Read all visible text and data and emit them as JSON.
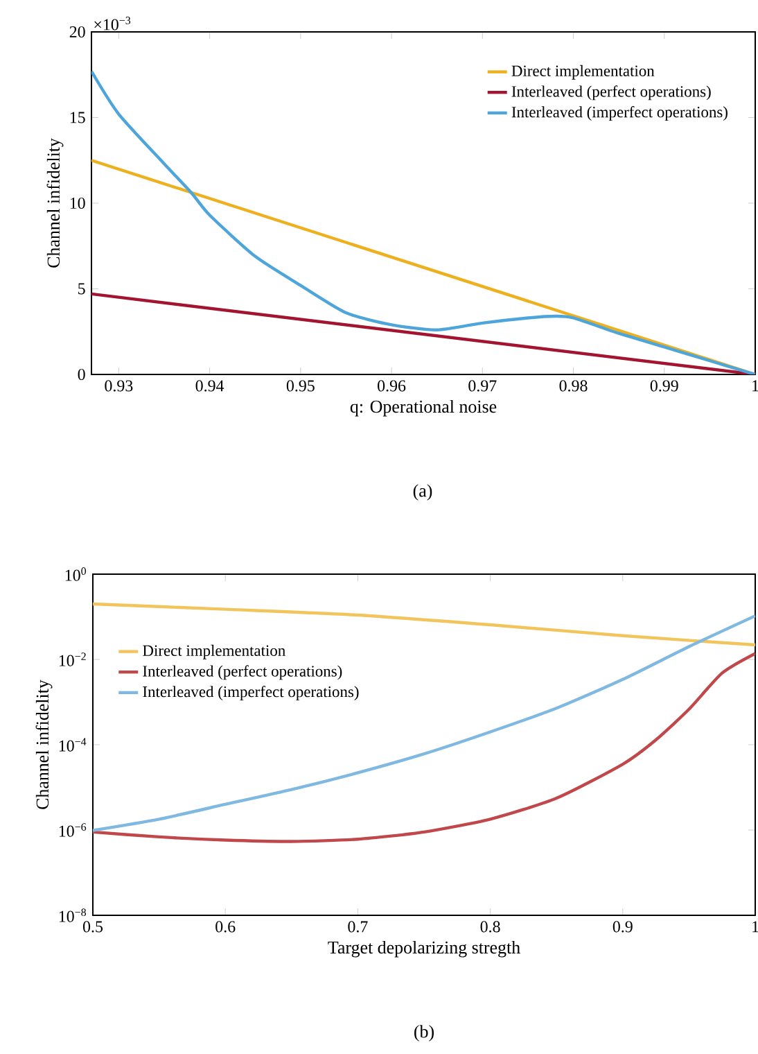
{
  "chart_data": [
    {
      "type": "line",
      "title": "(a)",
      "xlabel": "q: Operational noise",
      "ylabel": "Channel infidelity",
      "annotations": [
        "×10$^{−3}$"
      ],
      "xlim": [
        0.927,
        1
      ],
      "xticks": [
        0.93,
        0.94,
        0.95,
        0.96,
        0.97,
        0.98,
        0.99,
        1
      ],
      "ylim": [
        0,
        20
      ],
      "yticks": [
        0,
        5,
        10,
        15,
        20
      ],
      "legend": "top right",
      "grid": false,
      "line_style": "solid",
      "series": [
        {
          "name": "Direct implementation",
          "color": "#edb120",
          "x": [
            0.927,
            1
          ],
          "values": [
            12.5,
            0
          ]
        },
        {
          "name": "Interleaved (perfect operations)",
          "color": "#a2142f",
          "x": [
            0.927,
            1
          ],
          "values": [
            4.7,
            0
          ]
        },
        {
          "name": "Interleaved (imperfect operations)",
          "color": "#4ea5d9",
          "x": [
            0.927,
            0.93,
            0.935,
            0.938,
            0.94,
            0.945,
            0.95,
            0.955,
            0.96,
            0.965,
            0.97,
            0.975,
            0.978,
            0.98,
            0.985,
            0.99,
            0.995,
            1
          ],
          "values": [
            17.7,
            15.2,
            12.3,
            10.6,
            9.3,
            6.9,
            5.2,
            3.6,
            2.9,
            2.6,
            3.0,
            3.3,
            3.4,
            3.3,
            2.4,
            1.6,
            0.8,
            0
          ]
        }
      ]
    },
    {
      "type": "line",
      "title": "(b)",
      "xlabel": "Target depolarizing stregth",
      "ylabel": "Channel infidelity",
      "xlim": [
        0.5,
        1
      ],
      "xticks": [
        0.5,
        0.6,
        0.7,
        0.8,
        0.9,
        1
      ],
      "log": "y",
      "ylim": [
        1e-08,
        1
      ],
      "yticks": [
        {
          "value": 1e-08,
          "label": "10$^{−8}$"
        },
        {
          "value": 1e-06,
          "label": "10$^{−6}$"
        },
        {
          "value": 0.0001,
          "label": "10$^{−4}$"
        },
        {
          "value": 0.01,
          "label": "10$^{−2}$"
        },
        {
          "value": 1,
          "label": "10$^{0}$"
        }
      ],
      "legend": "left",
      "grid": false,
      "line_style": "solid",
      "series": [
        {
          "name": "Direct implementation",
          "color": "#f2c55c",
          "x": [
            0.5,
            0.6,
            0.7,
            0.8,
            0.9,
            1
          ],
          "values": [
            0.2,
            0.15,
            0.11,
            0.065,
            0.036,
            0.022
          ]
        },
        {
          "name": "Interleaved (perfect operations)",
          "color": "#c0474a",
          "x": [
            0.5,
            0.55,
            0.6,
            0.65,
            0.7,
            0.75,
            0.8,
            0.85,
            0.9,
            0.925,
            0.95,
            0.975,
            1
          ],
          "values": [
            9e-07,
            6.9e-07,
            5.8e-07,
            5.4e-07,
            6.1e-07,
            9e-07,
            1.8e-06,
            5.6e-06,
            3.5e-05,
            0.00013,
            0.00068,
            0.0048,
            0.0138
          ]
        },
        {
          "name": "Interleaved (imperfect operations)",
          "color": "#7fb8e0",
          "x": [
            0.5,
            0.55,
            0.6,
            0.65,
            0.7,
            0.75,
            0.8,
            0.85,
            0.9,
            0.95,
            1
          ],
          "values": [
            9.8e-07,
            1.8e-06,
            4e-06,
            8.9e-06,
            2.2e-05,
            6.1e-05,
            0.0002,
            0.00072,
            0.0034,
            0.02,
            0.105
          ]
        }
      ]
    }
  ]
}
